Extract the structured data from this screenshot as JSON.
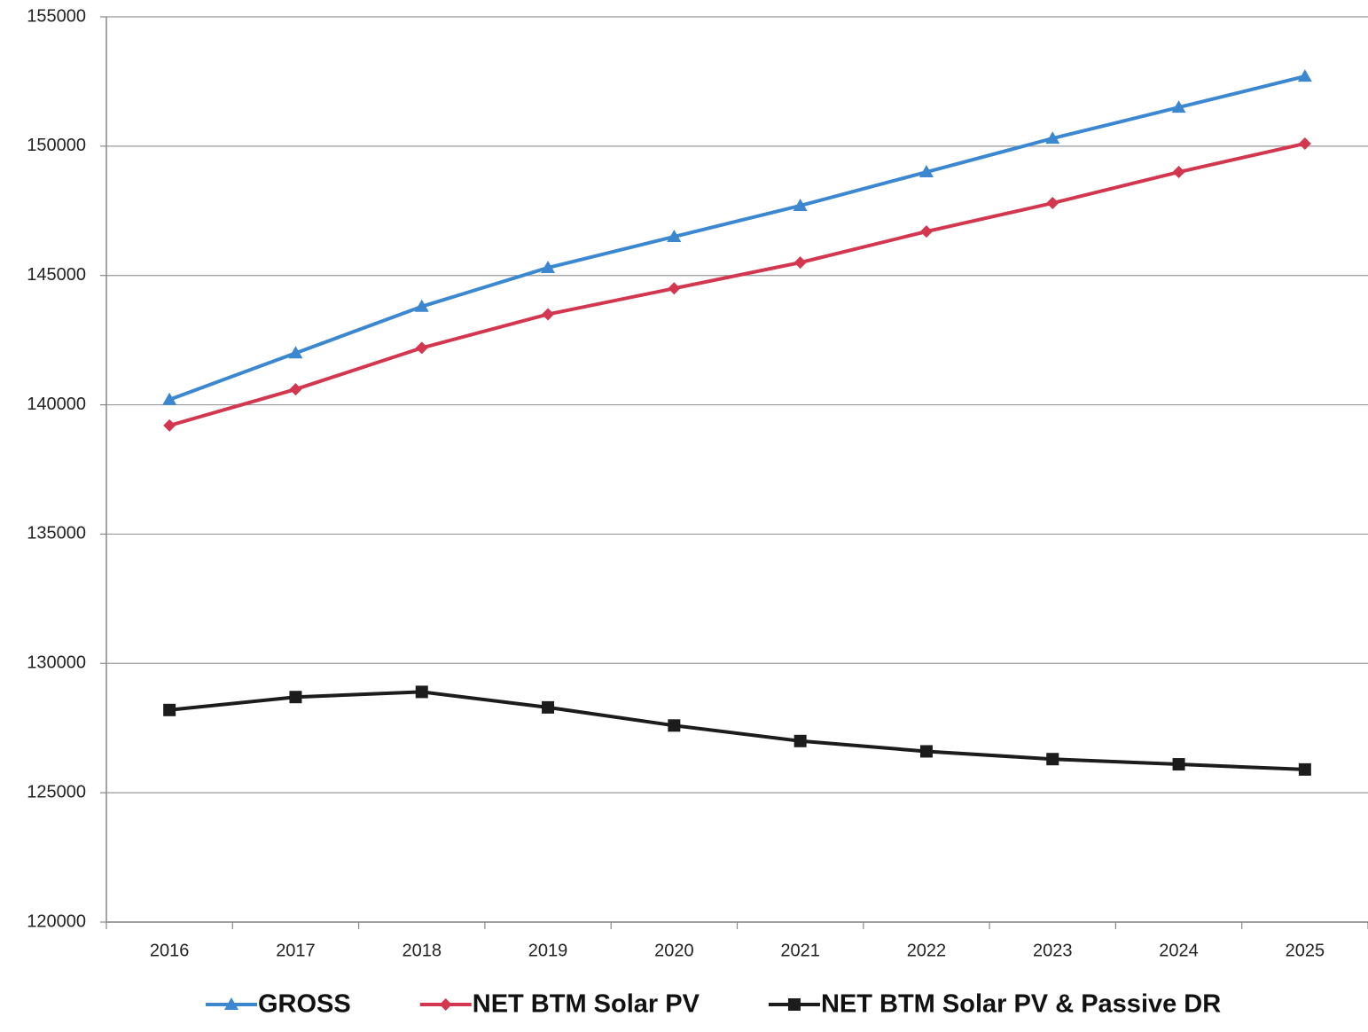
{
  "chart_data": {
    "type": "line",
    "categories": [
      "2016",
      "2017",
      "2018",
      "2019",
      "2020",
      "2021",
      "2022",
      "2023",
      "2024",
      "2025"
    ],
    "series": [
      {
        "name": "GROSS",
        "color": "#3b87d0",
        "marker": "triangle",
        "values": [
          140200,
          142000,
          143800,
          145300,
          146500,
          147700,
          149000,
          150300,
          151500,
          152700
        ]
      },
      {
        "name": "NET BTM Solar PV",
        "color": "#d2374f",
        "marker": "diamond",
        "values": [
          139200,
          140600,
          142200,
          143500,
          144500,
          145500,
          146700,
          147800,
          149000,
          150100
        ]
      },
      {
        "name": "NET BTM Solar PV & Passive DR",
        "color": "#1c1c1c",
        "marker": "square",
        "values": [
          128200,
          128700,
          128900,
          128300,
          127600,
          127000,
          126600,
          126300,
          126100,
          125900
        ]
      }
    ],
    "ylim": [
      120000,
      155000
    ],
    "yticks": [
      120000,
      125000,
      130000,
      135000,
      140000,
      145000,
      150000,
      155000
    ],
    "grid": true,
    "legend": "bottom"
  }
}
